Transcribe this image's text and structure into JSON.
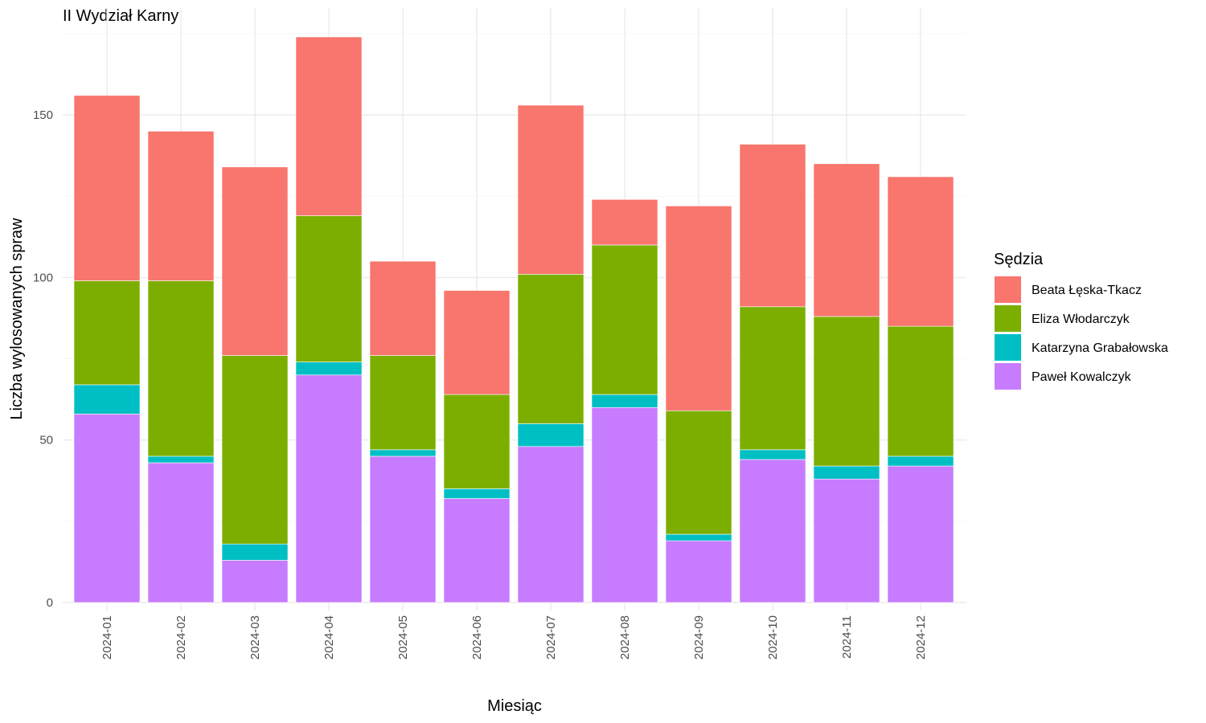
{
  "colors": {
    "Beata Łęska-Tkacz": "#F8766D",
    "Eliza Włodarczyk": "#7CAE00",
    "Katarzyna Grabałowska": "#00BFC4",
    "Paweł Kowalczyk": "#C77CFF"
  },
  "chart_data": {
    "type": "bar",
    "stacked": true,
    "title": "II Wydział Karny",
    "xlabel": "Miesiąc",
    "ylabel": "Liczba wylosowanych spraw",
    "legend_title": "Sędzia",
    "legend_position": "right",
    "grid": true,
    "ylim": [
      0,
      175
    ],
    "yticks": [
      0,
      50,
      100,
      150
    ],
    "categories": [
      "2024-01",
      "2024-02",
      "2024-03",
      "2024-04",
      "2024-05",
      "2024-06",
      "2024-07",
      "2024-08",
      "2024-09",
      "2024-10",
      "2024-11",
      "2024-12"
    ],
    "series": [
      {
        "name": "Paweł Kowalczyk",
        "values": [
          58,
          43,
          13,
          70,
          45,
          32,
          48,
          60,
          19,
          44,
          38,
          42
        ]
      },
      {
        "name": "Katarzyna Grabałowska",
        "values": [
          9,
          2,
          5,
          4,
          2,
          3,
          7,
          4,
          2,
          3,
          4,
          3
        ]
      },
      {
        "name": "Eliza Włodarczyk",
        "values": [
          32,
          54,
          58,
          45,
          29,
          29,
          46,
          46,
          38,
          44,
          46,
          40
        ]
      },
      {
        "name": "Beata Łęska-Tkacz",
        "values": [
          57,
          46,
          58,
          55,
          29,
          32,
          52,
          14,
          63,
          50,
          47,
          46
        ]
      }
    ],
    "legend_order": [
      "Beata Łęska-Tkacz",
      "Eliza Włodarczyk",
      "Katarzyna Grabałowska",
      "Paweł Kowalczyk"
    ]
  }
}
